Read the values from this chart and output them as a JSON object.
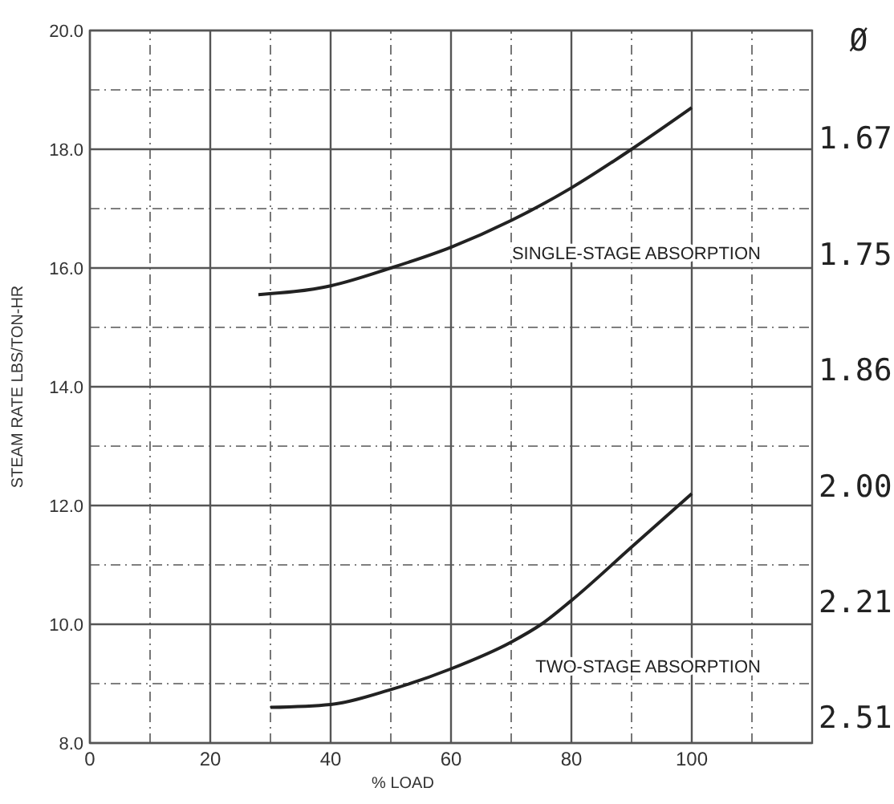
{
  "chart_data": {
    "type": "line",
    "xlabel": "% LOAD",
    "ylabel": "STEAM RATE LBS/TON-HR",
    "annotations": [
      "Ø",
      "1.67",
      "1.75",
      "1.86",
      "2.00",
      "2.21",
      "2.51"
    ],
    "xlim": [
      0,
      120
    ],
    "xticks": [
      0,
      {
        "value": 10,
        "label": null
      },
      20,
      {
        "value": 30,
        "label": null
      },
      40,
      {
        "value": 50,
        "label": null
      },
      60,
      {
        "value": 70,
        "label": null
      },
      80,
      {
        "value": 90,
        "label": null
      },
      100,
      {
        "value": 110,
        "label": null
      }
    ],
    "ylim": [
      8,
      20
    ],
    "yticks": [
      {
        "value": 8,
        "label": "8.0"
      },
      {
        "value": 9,
        "label": null
      },
      {
        "value": 10,
        "label": "10.0"
      },
      {
        "value": 11,
        "label": null
      },
      {
        "value": 12,
        "label": "12.0"
      },
      {
        "value": 13,
        "label": null
      },
      {
        "value": 14,
        "label": "14.0"
      },
      {
        "value": 15,
        "label": null
      },
      {
        "value": 16,
        "label": "16.0"
      },
      {
        "value": 17,
        "label": null
      },
      {
        "value": 18,
        "label": "18.0"
      },
      {
        "value": 19,
        "label": null
      },
      {
        "value": 20,
        "label": "20.0"
      }
    ],
    "grid": true,
    "line_style": "solid",
    "marker": "none",
    "series": [
      {
        "name": "SINGLE-STAGE ABSORPTION",
        "color": "#222222",
        "x": [
          28,
          40,
          50,
          60,
          70,
          80,
          90,
          100
        ],
        "values": [
          15.55,
          15.7,
          16.0,
          16.35,
          16.8,
          17.35,
          18.0,
          18.7
        ]
      },
      {
        "name": "TWO-STAGE ABSORPTION",
        "color": "#222222",
        "x": [
          30,
          40,
          50,
          60,
          70,
          75,
          80,
          90,
          100
        ],
        "values": [
          8.6,
          8.65,
          8.9,
          9.25,
          9.7,
          10.0,
          10.4,
          11.3,
          12.2
        ]
      }
    ]
  }
}
